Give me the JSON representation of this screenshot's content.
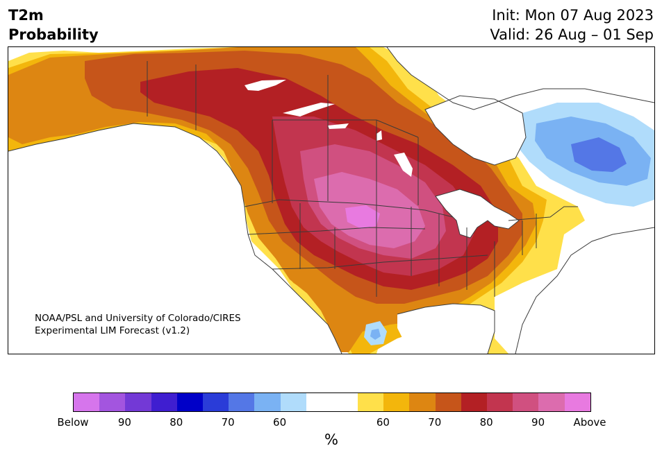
{
  "header": {
    "variable": "T2m",
    "product": "Probability",
    "init": "Init: Mon 07 Aug 2023",
    "valid": "Valid: 26 Aug – 01 Sep"
  },
  "credit": {
    "line1": "NOAA/PSL and University of Colorado/CIRES",
    "line2": "Experimental LIM Forecast (v1.2)"
  },
  "colorbar": {
    "segments": [
      "#d675ec",
      "#a355df",
      "#7339d6",
      "#3f1ed0",
      "#0000c8",
      "#2a3cd8",
      "#5477e6",
      "#7ab2f3",
      "#b0dcfb",
      "#ffffff",
      "#ffffff",
      "#ffe04a",
      "#f3b60c",
      "#dd8612",
      "#c6551a",
      "#b32024",
      "#c2354f",
      "#d05080",
      "#dc6cae",
      "#e87ae0"
    ],
    "tick_labels": [
      "Below",
      "90",
      "80",
      "70",
      "60",
      "60",
      "70",
      "80",
      "90",
      "Above"
    ],
    "unit": "%"
  },
  "map_colors": {
    "light_yellow": "#ffe04a",
    "gold": "#f3b60c",
    "orange": "#dd8612",
    "dark_orange": "#c6551a",
    "red": "#b32024",
    "crimson": "#c2354f",
    "rose": "#d05080",
    "pink": "#dc6cae",
    "magenta": "#e87ae0",
    "light_blue": "#b0dcfb",
    "sky_blue": "#7ab2f3",
    "blue": "#5477e6"
  }
}
